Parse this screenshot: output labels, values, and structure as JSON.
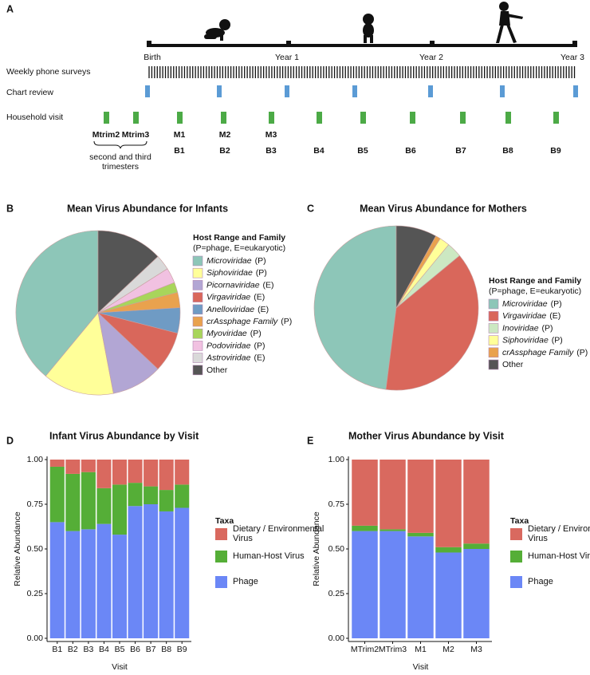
{
  "timeline": {
    "panel_label": "A",
    "milestones": [
      "Birth",
      "Year 1",
      "Year 2",
      "Year 3"
    ],
    "rows": [
      "Weekly phone surveys",
      "Chart review",
      "Household visit"
    ],
    "mother_visits": [
      "Mtrim2",
      "Mtrim3",
      "M1",
      "M2",
      "M3"
    ],
    "infant_visits": [
      "B1",
      "B2",
      "B3",
      "B4",
      "B5",
      "B6",
      "B7",
      "B8",
      "B9"
    ],
    "trimester_note": [
      "second and third",
      "trimesters"
    ]
  },
  "chart_data": [
    {
      "type": "pie",
      "panel_label": "B",
      "title": "Mean Virus Abundance for Infants",
      "legend_title": "Host Range and Family",
      "legend_subtitle": "(P=phage, E=eukaryotic)",
      "categories": [
        "Microviridae",
        "Siphoviridae",
        "Picornaviridae",
        "Virgaviridae",
        "Anelloviridae",
        "crAssphage Family",
        "Myoviridae",
        "Podoviridae",
        "Astroviridae",
        "Other"
      ],
      "hosts": [
        "(P)",
        "(P)",
        "(E)",
        "(E)",
        "(E)",
        "(P)",
        "(P)",
        "(P)",
        "(E)",
        null
      ],
      "values": [
        39,
        14,
        10,
        8,
        5,
        3,
        2,
        3,
        3,
        13
      ],
      "colors": [
        "#8dc6b8",
        "#ffff99",
        "#b2a6d4",
        "#d9675b",
        "#6f9bc4",
        "#e9a24e",
        "#a8d55b",
        "#f1c1e1",
        "#d9d9d9",
        "#555555"
      ]
    },
    {
      "type": "pie",
      "panel_label": "C",
      "title": "Mean Virus Abundance for Mothers",
      "legend_title": "Host Range and Family",
      "legend_subtitle": "(P=phage, E=eukaryotic)",
      "categories": [
        "Microviridae",
        "Virgaviridae",
        "Inoviridae",
        "Siphoviridae",
        "crAssphage Family",
        "Other"
      ],
      "hosts": [
        "(P)",
        "(E)",
        "(P)",
        "(P)",
        "(P)",
        null
      ],
      "values": [
        48,
        38,
        3,
        2,
        1,
        8
      ],
      "colors": [
        "#8dc6b8",
        "#d9675b",
        "#cce8c2",
        "#ffff99",
        "#e9a24e",
        "#555555"
      ]
    },
    {
      "type": "stacked_bar",
      "panel_label": "D",
      "title": "Infant Virus Abundance by Visit",
      "xlabel": "Visit",
      "ylabel": "Relative Abundance",
      "legend_title": "Taxa",
      "categories": [
        "B1",
        "B2",
        "B3",
        "B4",
        "B5",
        "B6",
        "B7",
        "B8",
        "B9"
      ],
      "series": [
        {
          "name": "Phage",
          "color": "#6b87f6",
          "values": [
            0.65,
            0.6,
            0.61,
            0.64,
            0.58,
            0.74,
            0.75,
            0.71,
            0.73
          ]
        },
        {
          "name": "Human-Host Virus",
          "color": "#55ae37",
          "values": [
            0.31,
            0.32,
            0.32,
            0.2,
            0.28,
            0.13,
            0.1,
            0.12,
            0.13
          ]
        },
        {
          "name": "Dietary / Environmental Virus",
          "color": "#d9695f",
          "values": [
            0.04,
            0.08,
            0.07,
            0.16,
            0.14,
            0.13,
            0.15,
            0.17,
            0.14
          ]
        }
      ],
      "ylim": [
        0,
        1
      ],
      "yticks": [
        {
          "value": 0,
          "label": "0.00"
        },
        {
          "value": 0.25,
          "label": "0.25"
        },
        {
          "value": 0.5,
          "label": "0.50"
        },
        {
          "value": 0.75,
          "label": "0.75"
        },
        {
          "value": 1,
          "label": "1.00"
        }
      ]
    },
    {
      "type": "stacked_bar",
      "panel_label": "E",
      "title": "Mother Virus Abundance by Visit",
      "xlabel": "Visit",
      "ylabel": "Relative Abundance",
      "legend_title": "Taxa",
      "categories": [
        "MTrim2",
        "MTrim3",
        "M1",
        "M2",
        "M3"
      ],
      "series": [
        {
          "name": "Phage",
          "color": "#6b87f6",
          "values": [
            0.6,
            0.6,
            0.57,
            0.48,
            0.5
          ]
        },
        {
          "name": "Human-Host Virus",
          "color": "#55ae37",
          "values": [
            0.03,
            0.01,
            0.02,
            0.03,
            0.03
          ]
        },
        {
          "name": "Dietary / Environmental Virus",
          "color": "#d9695f",
          "values": [
            0.37,
            0.39,
            0.41,
            0.49,
            0.47
          ]
        }
      ],
      "ylim": [
        0,
        1
      ],
      "yticks": [
        {
          "value": 0,
          "label": "0.00"
        },
        {
          "value": 0.25,
          "label": "0.25"
        },
        {
          "value": 0.5,
          "label": "0.50"
        },
        {
          "value": 0.75,
          "label": "0.75"
        },
        {
          "value": 1,
          "label": "1.00"
        }
      ]
    }
  ]
}
